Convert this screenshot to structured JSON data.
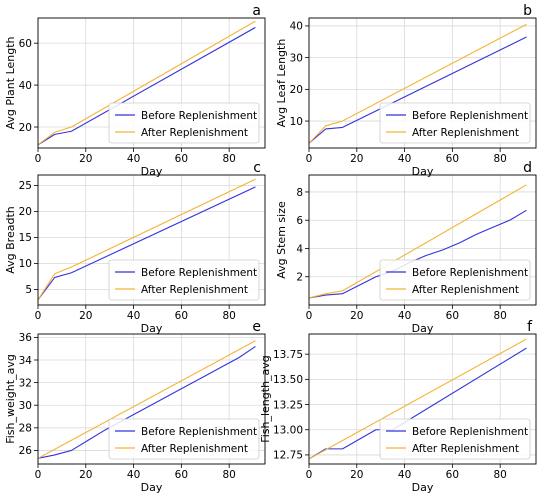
{
  "chart_data": [
    {
      "type": "line",
      "panel_label": "a",
      "xlabel": "Day",
      "ylabel": "Avg Plant Length",
      "xlim": [
        0,
        95
      ],
      "ylim": [
        10,
        72
      ],
      "xticks": [
        0,
        20,
        40,
        60,
        80
      ],
      "yticks": [
        20,
        40,
        60
      ],
      "grid": true,
      "legend_position": "bottom-right",
      "series": [
        {
          "name": "Before Replenishment",
          "color": "#3333dd",
          "x": [
            0,
            7,
            14,
            91
          ],
          "y": [
            11.5,
            16.5,
            18.0,
            67.5
          ]
        },
        {
          "name": "After Replenishment",
          "color": "#f5b335",
          "x": [
            0,
            7,
            14,
            91
          ],
          "y": [
            11.5,
            17.5,
            20.0,
            70.5
          ]
        }
      ]
    },
    {
      "type": "line",
      "panel_label": "b",
      "xlabel": "Day",
      "ylabel": "Avg Leaf Length",
      "xlim": [
        0,
        95
      ],
      "ylim": [
        1.5,
        42.5
      ],
      "xticks": [
        0,
        20,
        40,
        60,
        80
      ],
      "yticks": [
        10,
        20,
        30,
        40
      ],
      "grid": true,
      "legend_position": "bottom-right",
      "series": [
        {
          "name": "Before Replenishment",
          "color": "#3333dd",
          "x": [
            0,
            7,
            14,
            91
          ],
          "y": [
            3.0,
            7.5,
            8.0,
            36.5
          ]
        },
        {
          "name": "After Replenishment",
          "color": "#f5b335",
          "x": [
            0,
            7,
            14,
            91
          ],
          "y": [
            3.0,
            8.5,
            10.0,
            40.5
          ]
        }
      ]
    },
    {
      "type": "line",
      "panel_label": "c",
      "xlabel": "Day",
      "ylabel": "Avg Breadth",
      "xlim": [
        0,
        95
      ],
      "ylim": [
        2.0,
        27.0
      ],
      "xticks": [
        0,
        20,
        40,
        60,
        80
      ],
      "yticks": [
        5,
        10,
        15,
        20,
        25
      ],
      "grid": true,
      "legend_position": "bottom-right",
      "series": [
        {
          "name": "Before Replenishment",
          "color": "#3333dd",
          "x": [
            0,
            7,
            14,
            91
          ],
          "y": [
            3.0,
            7.3,
            8.2,
            24.7
          ]
        },
        {
          "name": "After Replenishment",
          "color": "#f5b335",
          "x": [
            0,
            7,
            14,
            91
          ],
          "y": [
            3.0,
            8.0,
            9.3,
            26.2
          ]
        }
      ]
    },
    {
      "type": "line",
      "panel_label": "d",
      "xlabel": "Day",
      "ylabel": "Avg Stem size",
      "xlim": [
        0,
        95
      ],
      "ylim": [
        0.0,
        9.2
      ],
      "xticks": [
        0,
        20,
        40,
        60,
        80
      ],
      "yticks": [
        2,
        4,
        6,
        8
      ],
      "grid": true,
      "legend_position": "bottom-right",
      "series": [
        {
          "name": "Before Replenishment",
          "color": "#3333dd",
          "x": [
            0,
            7,
            14,
            21,
            28,
            35,
            42,
            49,
            56,
            63,
            70,
            77,
            84,
            91
          ],
          "y": [
            0.5,
            0.7,
            0.8,
            1.4,
            2.0,
            2.4,
            3.0,
            3.5,
            3.9,
            4.4,
            5.0,
            5.5,
            6.0,
            6.7
          ]
        },
        {
          "name": "After Replenishment",
          "color": "#f5b335",
          "x": [
            0,
            7,
            14,
            91
          ],
          "y": [
            0.5,
            0.8,
            1.0,
            8.5
          ]
        }
      ]
    },
    {
      "type": "line",
      "panel_label": "e",
      "xlabel": "Day",
      "ylabel": "Fish_weight_avg",
      "xlim": [
        0,
        95
      ],
      "ylim": [
        24.8,
        36.3
      ],
      "xticks": [
        0,
        20,
        40,
        60,
        80
      ],
      "yticks": [
        26,
        28,
        30,
        32,
        34,
        36
      ],
      "grid": true,
      "legend_position": "bottom-right",
      "series": [
        {
          "name": "Before Replenishment",
          "color": "#3333dd",
          "x": [
            0,
            7,
            14,
            21,
            28,
            35,
            42,
            49,
            56,
            63,
            70,
            77,
            84,
            91
          ],
          "y": [
            25.3,
            25.6,
            26.0,
            26.9,
            27.8,
            28.6,
            29.4,
            30.2,
            31.0,
            31.8,
            32.6,
            33.4,
            34.2,
            35.2
          ]
        },
        {
          "name": "After Replenishment",
          "color": "#f5b335",
          "x": [
            0,
            91
          ],
          "y": [
            25.3,
            35.7
          ]
        }
      ]
    },
    {
      "type": "line",
      "panel_label": "f",
      "xlabel": "Day",
      "ylabel": "Fish_length_avg",
      "xlim": [
        0,
        95
      ],
      "ylim": [
        12.66,
        13.95
      ],
      "xticks": [
        0,
        20,
        40,
        60,
        80
      ],
      "yticks": [
        12.75,
        13.0,
        13.25,
        13.5,
        13.75
      ],
      "ytick_labels": [
        "12.75",
        "13.00",
        "13.25",
        "13.50",
        "13.75"
      ],
      "grid": true,
      "legend_position": "bottom-right",
      "series": [
        {
          "name": "Before Replenishment",
          "color": "#3333dd",
          "x": [
            0,
            7,
            14,
            28,
            35,
            91
          ],
          "y": [
            12.71,
            12.81,
            12.81,
            13.0,
            13.0,
            13.81
          ]
        },
        {
          "name": "After Replenishment",
          "color": "#f5b335",
          "x": [
            0,
            91
          ],
          "y": [
            12.71,
            13.9
          ]
        }
      ]
    }
  ]
}
